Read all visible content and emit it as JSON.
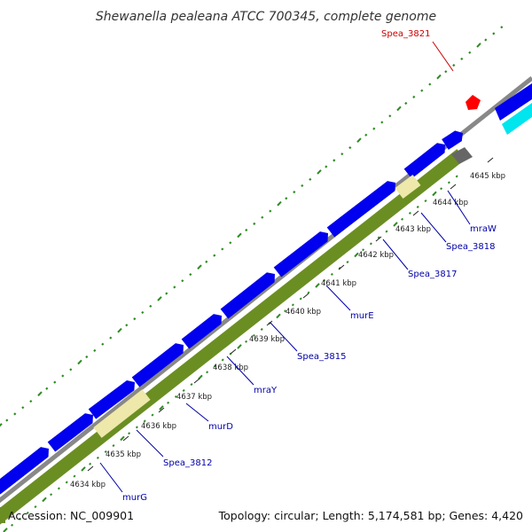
{
  "title": "Shewanella pealeana ATCC 700345, complete genome",
  "footer": {
    "accession": "Accession: NC_009901",
    "summary": "Topology: circular; Length: 5,174,581 bp; Genes: 4,420"
  },
  "ruler_labels": [
    "4634 kbp",
    "4635 kbp",
    "4636 kbp",
    "4637 kbp",
    "4638 kbp",
    "4639 kbp",
    "4640 kbp",
    "4641 kbp",
    "4642 kbp",
    "4643 kbp",
    "4644 kbp",
    "4645 kbp"
  ],
  "gene_labels": [
    {
      "text": "murG",
      "highlight": false
    },
    {
      "text": "Spea_3812",
      "highlight": false
    },
    {
      "text": "murD",
      "highlight": false
    },
    {
      "text": "mraY",
      "highlight": false
    },
    {
      "text": "Spea_3815",
      "highlight": false
    },
    {
      "text": "murE",
      "highlight": false
    },
    {
      "text": "Spea_3817",
      "highlight": false
    },
    {
      "text": "Spea_3818",
      "highlight": false
    },
    {
      "text": "mraW",
      "highlight": false
    },
    {
      "text": "Spea_3821",
      "highlight": true
    }
  ],
  "colors": {
    "cds": "#0000ee",
    "gene_track": "#6b8e23",
    "gene_light": "#eee8aa",
    "backbone": "#888888",
    "tick_green": "#2e8b22",
    "rna": "#00e5ee",
    "highlight": "#ff0000",
    "pseudo": "#666666"
  }
}
